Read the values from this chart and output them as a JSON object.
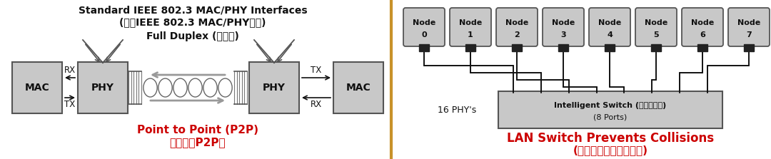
{
  "bg_color": "#ffffff",
  "left_title1": "Standard IEEE 802.3 MAC/PHY Interfaces",
  "left_title2": "(标准IEEE 802.3 MAC/PHY接口)",
  "left_subtitle": "Full Duplex (全双工)",
  "left_bottom1": "Point to Point (P2P)",
  "left_bottom2": "点对点（P2P）",
  "right_bottom1": "LAN Switch Prevents Collisions",
  "right_bottom2": "(局域网交换机预防冲突)",
  "phy_label": "16 PHY's",
  "switch_label1": "Intelligent Switch (智能交换机)",
  "switch_label2": "(8 Ports)",
  "node_labels": [
    "Node\n0",
    "Node\n1",
    "Node\n2",
    "Node\n3",
    "Node\n4",
    "Node\n5",
    "Node\n6",
    "Node\n7"
  ],
  "box_fill": "#c8c8c8",
  "box_edge": "#555555",
  "text_red": "#cc0000",
  "text_black": "#111111",
  "line_color": "#111111",
  "divider_color": "#c8922a"
}
